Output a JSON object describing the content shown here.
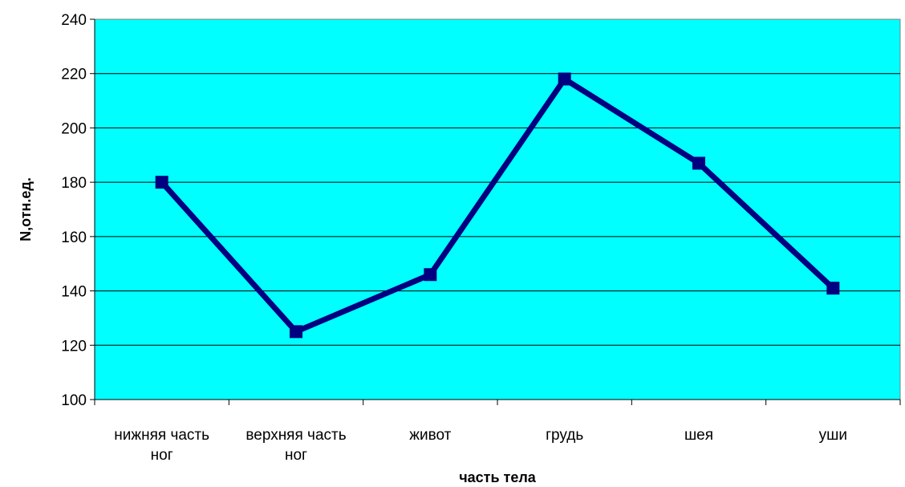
{
  "chart_data": {
    "type": "line",
    "categories": [
      [
        "нижняя часть",
        "ног"
      ],
      [
        "верхняя часть",
        "ног"
      ],
      [
        "живот"
      ],
      [
        "грудь"
      ],
      [
        "шея"
      ],
      [
        "уши"
      ]
    ],
    "series": [
      {
        "values": [
          180,
          125,
          146,
          218,
          187,
          141
        ],
        "color": "#000080",
        "marker": "square"
      }
    ],
    "xlabel": "часть тела",
    "ylabel": "N,отн.ед.",
    "ylim": [
      100,
      240
    ],
    "yticks": [
      100,
      120,
      140,
      160,
      180,
      200,
      220,
      240
    ],
    "grid": true,
    "legend": "none",
    "plot_background": "#00FFFF"
  }
}
